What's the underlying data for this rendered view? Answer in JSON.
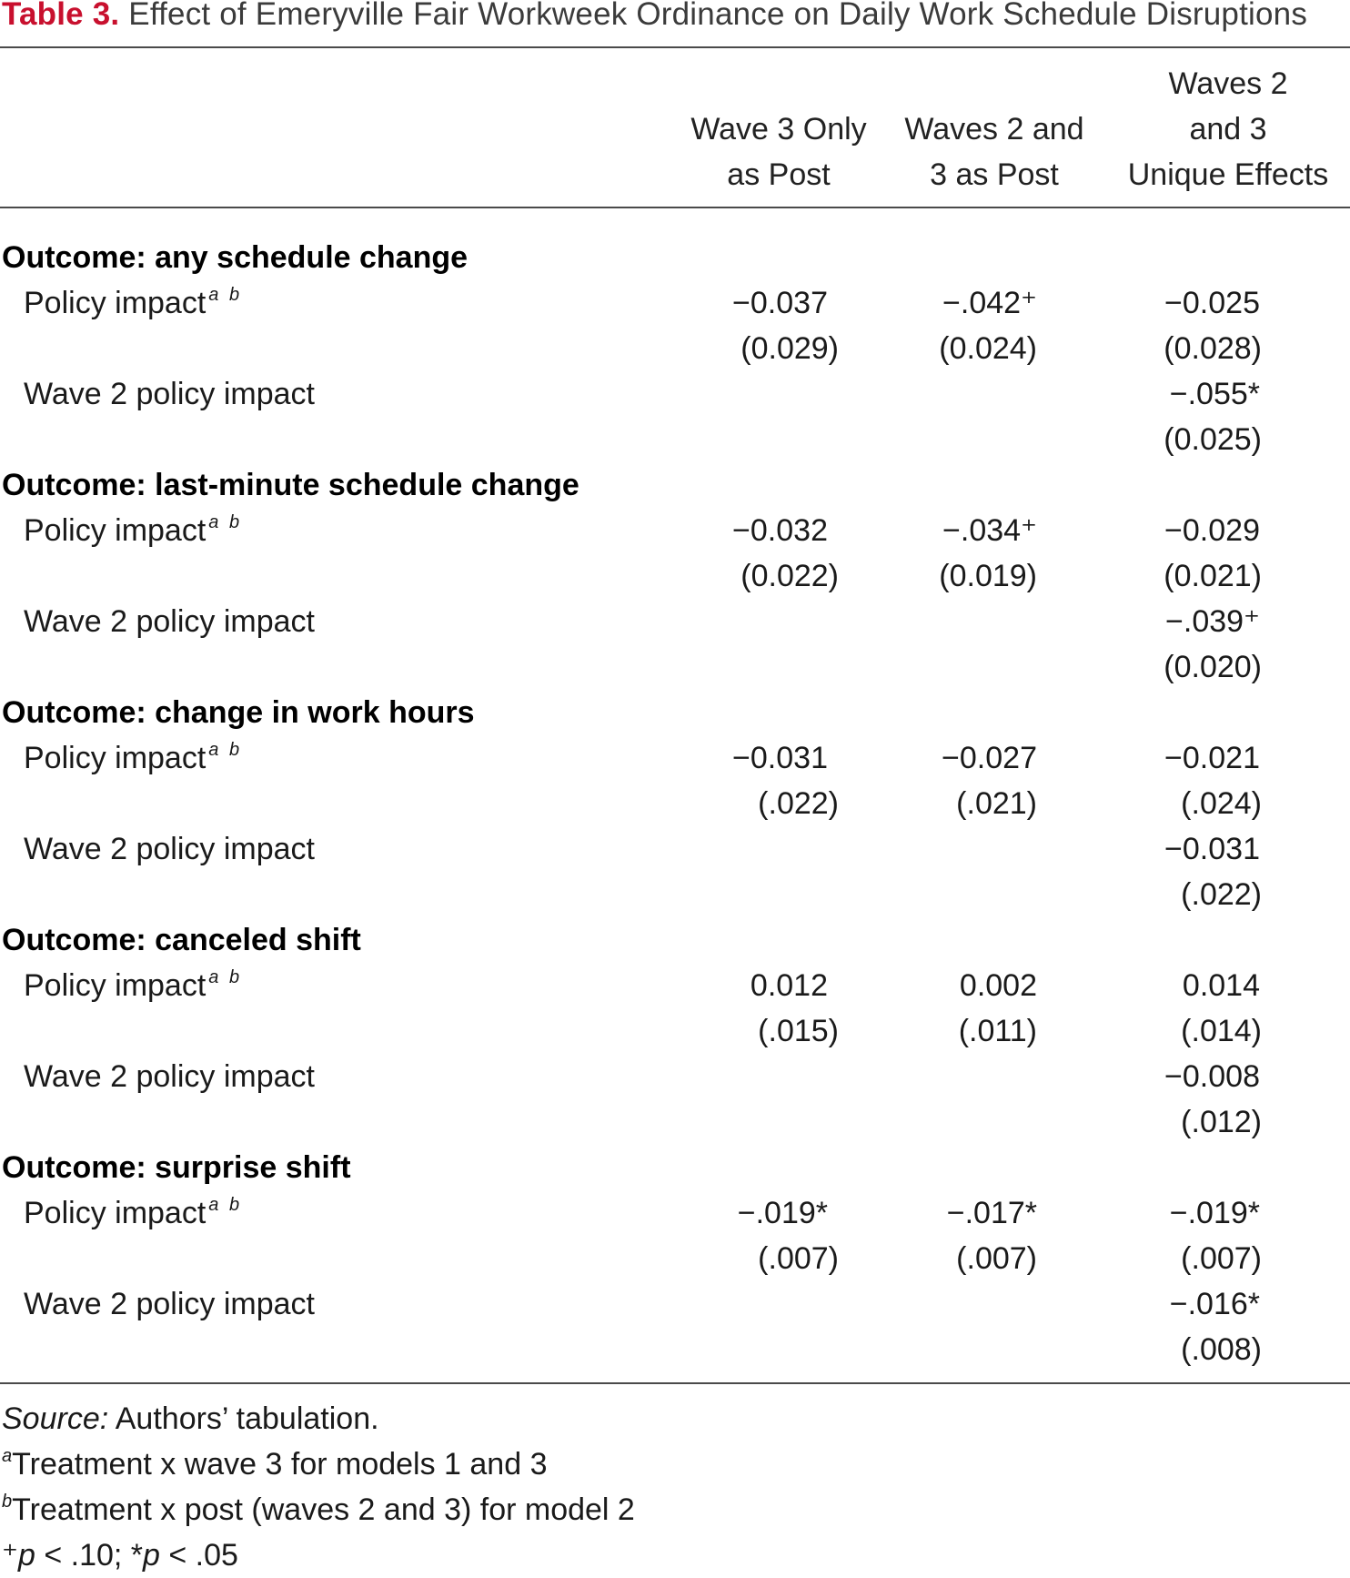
{
  "title": {
    "label": "Table 3.",
    "text": "Effect of Emeryville Fair Workweek Ordinance on Daily Work Schedule Disruptions"
  },
  "columns": [
    {
      "lines": [
        "Wave 3 Only",
        "as Post"
      ]
    },
    {
      "lines": [
        "Waves 2 and",
        "3 as Post"
      ]
    },
    {
      "lines": [
        "Waves 2",
        "and 3",
        "Unique Effects"
      ]
    }
  ],
  "superscripts": "a b",
  "sections": [
    {
      "outcome": "Outcome: any schedule change",
      "rows": [
        {
          "label": "Policy impact",
          "values": [
            "−0.037",
            "−.042⁺",
            "−0.025"
          ],
          "se": [
            "(0.029)",
            "(0.024)",
            "(0.028)"
          ]
        },
        {
          "label": "Wave 2 policy impact",
          "values": [
            "",
            "",
            "−.055*"
          ],
          "se": [
            "",
            "",
            "(0.025)"
          ]
        }
      ]
    },
    {
      "outcome": "Outcome: last-minute schedule change",
      "rows": [
        {
          "label": "Policy impact",
          "values": [
            "−0.032",
            "−.034⁺",
            "−0.029"
          ],
          "se": [
            "(0.022)",
            "(0.019)",
            "(0.021)"
          ]
        },
        {
          "label": "Wave 2 policy impact",
          "values": [
            "",
            "",
            "−.039⁺"
          ],
          "se": [
            "",
            "",
            "(0.020)"
          ]
        }
      ]
    },
    {
      "outcome": "Outcome: change in work hours",
      "rows": [
        {
          "label": "Policy impact",
          "values": [
            "−0.031",
            "−0.027",
            "−0.021"
          ],
          "se": [
            "(.022)",
            "(.021)",
            "(.024)"
          ]
        },
        {
          "label": "Wave 2 policy impact",
          "values": [
            "",
            "",
            "−0.031"
          ],
          "se": [
            "",
            "",
            "(.022)"
          ]
        }
      ]
    },
    {
      "outcome": "Outcome: canceled shift",
      "rows": [
        {
          "label": "Policy impact",
          "values": [
            "0.012",
            "0.002",
            "0.014"
          ],
          "se": [
            "(.015)",
            "(.011)",
            "(.014)"
          ]
        },
        {
          "label": "Wave 2 policy impact",
          "values": [
            "",
            "",
            "−0.008"
          ],
          "se": [
            "",
            "",
            "(.012)"
          ]
        }
      ]
    },
    {
      "outcome": "Outcome: surprise shift",
      "rows": [
        {
          "label": "Policy impact",
          "values": [
            "−.019*",
            "−.017*",
            "−.019*"
          ],
          "se": [
            "(.007)",
            "(.007)",
            "(.007)"
          ]
        },
        {
          "label": "Wave 2 policy impact",
          "values": [
            "",
            "",
            "−.016*"
          ],
          "se": [
            "",
            "",
            "(.008)"
          ]
        }
      ]
    }
  ],
  "footnotes": {
    "source_label": "Source:",
    "source_text": " Authors’ tabulation.",
    "note_a_mark": "a",
    "note_a": "Treatment x wave 3 for models 1 and 3",
    "note_b_mark": "b",
    "note_b": "Treatment x post (waves 2 and 3) for model 2",
    "sig_mark_plus": "⁺",
    "sig_p1": "p",
    "sig_text1": " < .10; *",
    "sig_p2": "p",
    "sig_text2": " < .05"
  }
}
